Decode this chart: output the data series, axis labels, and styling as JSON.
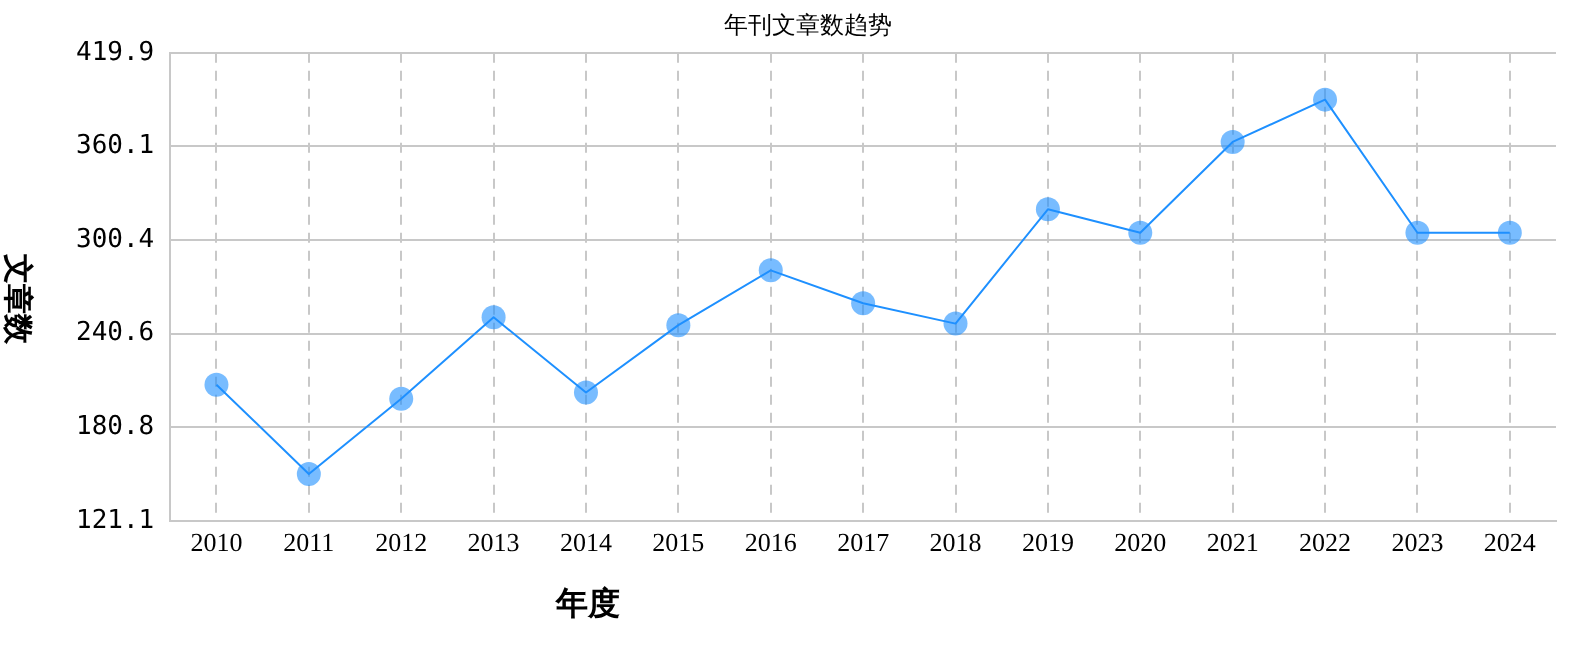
{
  "chart_data": {
    "type": "line",
    "title": "年刊文章数趋势",
    "xlabel": "年度",
    "ylabel": "文章数",
    "categories": [
      "2010",
      "2011",
      "2012",
      "2013",
      "2014",
      "2015",
      "2016",
      "2017",
      "2018",
      "2019",
      "2020",
      "2021",
      "2022",
      "2023",
      "2024"
    ],
    "series": [
      {
        "color": "#1e90ff",
        "values": [
          208,
          151,
          199,
          251,
          203,
          246,
          281,
          260,
          247,
          320,
          305,
          363,
          390,
          305,
          305
        ]
      }
    ],
    "ylim": [
      121.1,
      419.9
    ],
    "yticks": [
      121.1,
      180.8,
      240.6,
      300.4,
      360.1,
      419.9
    ],
    "grid": true,
    "marker": "circle",
    "line_style": "solid"
  }
}
